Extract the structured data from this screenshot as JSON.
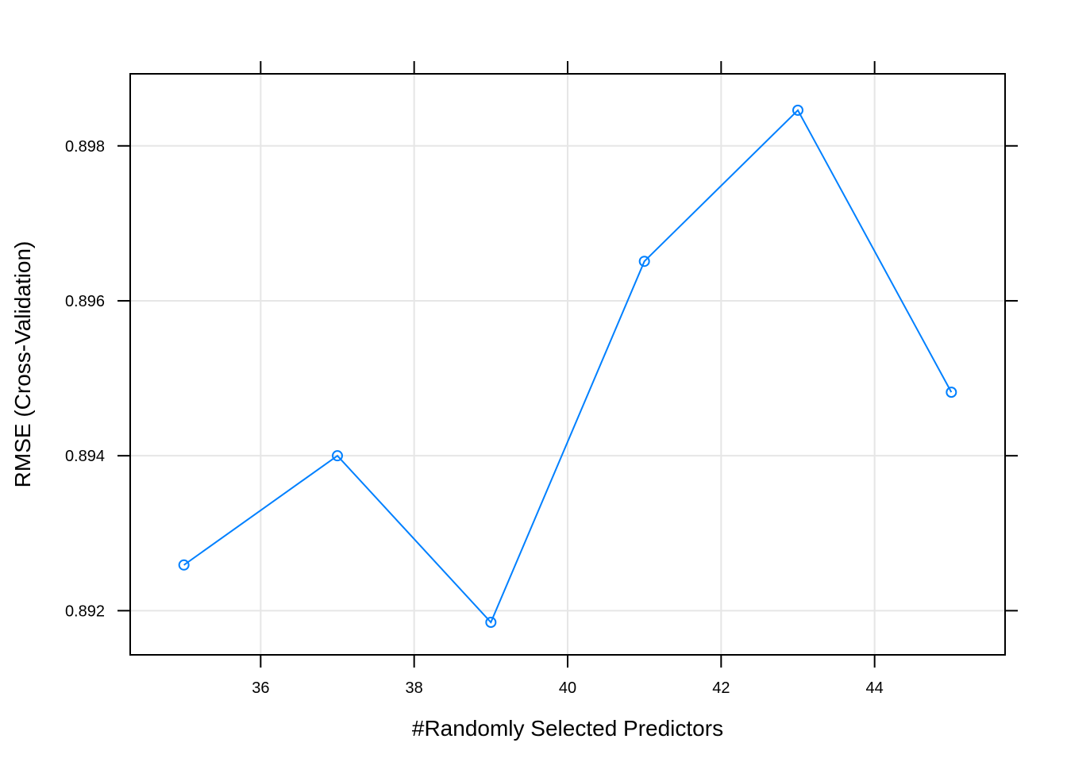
{
  "chart_data": {
    "type": "line",
    "title": "",
    "xlabel": "#Randomly Selected Predictors",
    "ylabel": "RMSE (Cross-Validation)",
    "xlim": [
      34.3,
      45.7
    ],
    "ylim": [
      0.89143,
      0.89893
    ],
    "xticks": [
      36,
      38,
      40,
      42,
      44
    ],
    "xtick_labels": [
      "36",
      "38",
      "40",
      "42",
      "44"
    ],
    "yticks": [
      0.892,
      0.894,
      0.896,
      0.898
    ],
    "ytick_labels": [
      "0.892",
      "0.894",
      "0.896",
      "0.898"
    ],
    "grid": true,
    "x": [
      35,
      37,
      39,
      41,
      43,
      45
    ],
    "series": [
      {
        "values": [
          0.89259,
          0.894,
          0.89185,
          0.89651,
          0.89846,
          0.89482
        ]
      }
    ],
    "colors": {
      "series": "#0080ff",
      "grid": "#e6e6e6",
      "axis": "#000000"
    }
  }
}
